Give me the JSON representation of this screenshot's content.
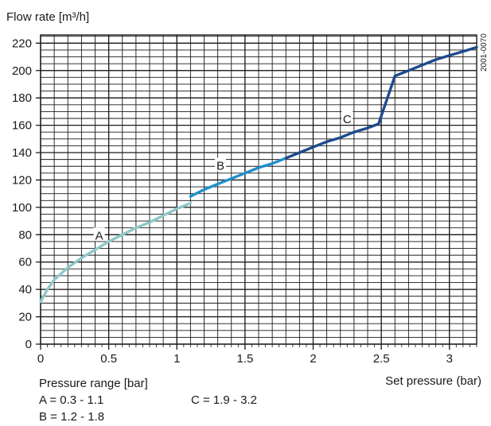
{
  "chart_data": {
    "type": "line",
    "ylabel": "Flow rate [m³/h]",
    "xlabel": "Set pressure (bar)",
    "code": "2001-0070",
    "xlim": [
      0,
      3.2
    ],
    "ylim": [
      0,
      226
    ],
    "x_ticks": [
      0,
      0.5,
      1,
      1.5,
      2,
      2.5,
      3
    ],
    "x_tick_labels": [
      "0",
      "0.5",
      "1",
      "1.5",
      "2",
      "2.5",
      "3"
    ],
    "y_ticks": [
      0,
      20,
      40,
      60,
      80,
      100,
      120,
      140,
      160,
      180,
      200,
      220
    ],
    "y_tick_labels": [
      "0",
      "20",
      "40",
      "60",
      "80",
      "100",
      "120",
      "140",
      "160",
      "180",
      "200",
      "220"
    ],
    "grid": true,
    "series": [
      {
        "name": "A",
        "color": "#8ec7c9",
        "x": [
          0.0,
          0.05,
          0.1,
          0.2,
          0.3,
          0.4,
          0.5,
          0.6,
          0.7,
          0.8,
          0.9,
          1.0,
          1.1
        ],
        "y": [
          31,
          40,
          47,
          56,
          63,
          69,
          75,
          80,
          85,
          89,
          94,
          99,
          103
        ]
      },
      {
        "name": "B",
        "color": "#2090cc",
        "x": [
          1.1,
          1.2,
          1.3,
          1.4,
          1.5,
          1.6,
          1.7,
          1.8
        ],
        "y": [
          108,
          113,
          117,
          121,
          125,
          129,
          132,
          136
        ]
      },
      {
        "name": "C",
        "color": "#1d4a8c",
        "x": [
          1.8,
          1.9,
          2.0,
          2.1,
          2.2,
          2.3,
          2.4,
          2.48,
          2.6,
          2.7,
          2.8,
          2.9,
          3.0,
          3.1,
          3.2
        ],
        "y": [
          136,
          140,
          144,
          148,
          151,
          155,
          158,
          161,
          196,
          200,
          204,
          208,
          211,
          214,
          217
        ]
      }
    ],
    "curve_labels": [
      {
        "text": "A",
        "x": 0.43,
        "y": 80
      },
      {
        "text": "B",
        "x": 1.32,
        "y": 131
      },
      {
        "text": "C",
        "x": 2.25,
        "y": 165
      }
    ],
    "legend": {
      "title": "Pressure range [bar]",
      "items": [
        "A = 0.3 - 1.1",
        "B = 1.2 - 1.8",
        "C = 1.9 - 3.2"
      ]
    }
  }
}
